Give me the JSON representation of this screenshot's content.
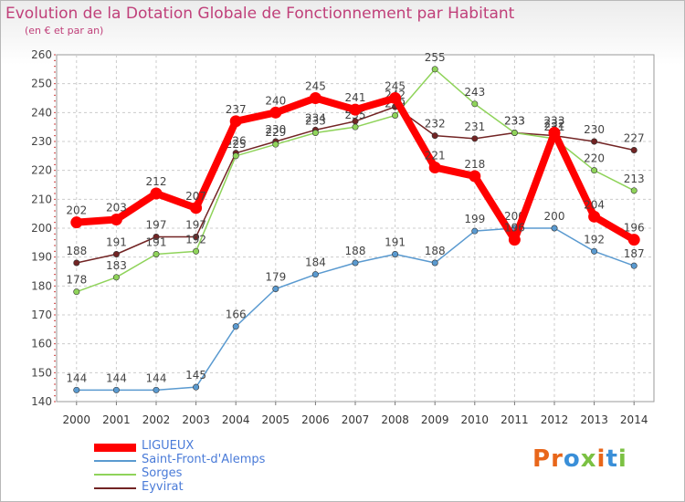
{
  "title": "Evolution de la Dotation Globale de Fonctionnement par Habitant",
  "subtitle": "(en € et par an)",
  "logo": {
    "text": "Proxiti",
    "colors": [
      "#e8661a",
      "#e8661a",
      "#3a8fd8",
      "#7bc143",
      "#e8661a",
      "#3a8fd8",
      "#7bc143"
    ]
  },
  "chart_data": {
    "type": "line",
    "x": [
      "2000",
      "2001",
      "2002",
      "2003",
      "2004",
      "2005",
      "2006",
      "2007",
      "2008",
      "2009",
      "2010",
      "2011",
      "2012",
      "2013",
      "2014"
    ],
    "ylim": [
      140,
      260
    ],
    "yticks": [
      "140",
      "150",
      "160",
      "170",
      "180",
      "190",
      "200",
      "210",
      "220",
      "230",
      "240",
      "250",
      "260"
    ],
    "grid": true,
    "legend_position": "bottom-left",
    "series": [
      {
        "name": "Eyvirat",
        "color": "#722424",
        "width": 1.5,
        "values": [
          188,
          191,
          197,
          197,
          226,
          230,
          234,
          237,
          242,
          232,
          231,
          233,
          232,
          230,
          227
        ],
        "labels": [
          "188",
          "191",
          "197",
          "197",
          "226",
          "230",
          "234",
          "237",
          "242",
          "232",
          "231",
          "233",
          "232",
          "230",
          "227"
        ]
      },
      {
        "name": "Sorges",
        "color": "#8fd35a",
        "width": 1.5,
        "values": [
          178,
          183,
          191,
          192,
          225,
          229,
          233,
          235,
          239,
          255,
          243,
          233,
          231,
          220,
          213
        ],
        "labels": [
          "178",
          "183",
          "191",
          "192",
          "225",
          "229",
          "233",
          "235",
          "239",
          "255",
          "243",
          "233",
          "231",
          "220",
          "213"
        ]
      },
      {
        "name": "Saint-Front-d'Alemps",
        "color": "#5a9ad0",
        "width": 1.5,
        "values": [
          144,
          144,
          144,
          145,
          166,
          179,
          184,
          188,
          191,
          188,
          199,
          200,
          200,
          192,
          187
        ],
        "labels": [
          "144",
          "144",
          "144",
          "145",
          "166",
          "179",
          "184",
          "188",
          "191",
          "188",
          "199",
          "200",
          "200",
          "192",
          "187"
        ]
      },
      {
        "name": "LIGUEUX",
        "color": "#ff0000",
        "width": 8,
        "values": [
          202,
          203,
          212,
          207,
          237,
          240,
          245,
          241,
          245,
          221,
          218,
          196,
          233,
          204,
          196
        ],
        "labels": [
          "202",
          "203",
          "212",
          "207",
          "237",
          "240",
          "245",
          "241",
          "245",
          "221",
          "218",
          "196",
          "233",
          "204",
          "196"
        ]
      }
    ]
  }
}
